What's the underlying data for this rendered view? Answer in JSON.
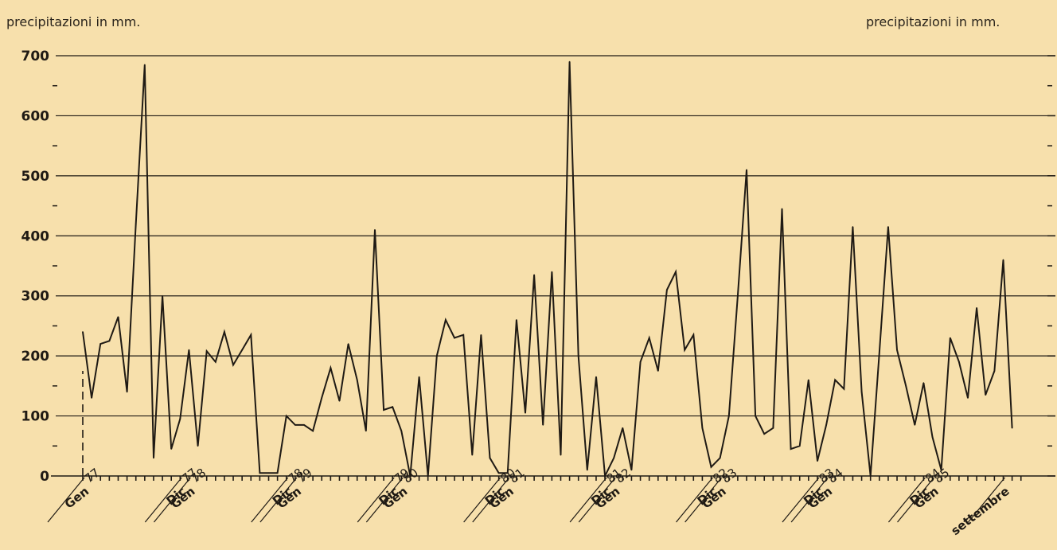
{
  "unit_label_left": "precipitazioni in mm.",
  "unit_label_right": "precipitazioni in mm.",
  "colors": {
    "background": "#f7e0ac",
    "line": "#1f1a14"
  },
  "chart_data": {
    "type": "line",
    "title": "",
    "xlabel": "",
    "ylabel": "precipitazioni in mm.",
    "ylim": [
      0,
      700
    ],
    "grid": true,
    "y_ticks": [
      "0",
      "100",
      "200",
      "300",
      "400",
      "500",
      "600",
      "700"
    ],
    "x_period": "Gen 1977 – settembre 1985 (monthly)",
    "x_labels": [
      {
        "word": "Gen",
        "year": "77",
        "month_index": 0
      },
      {
        "word": "Dic",
        "year": "77",
        "month_index": 11
      },
      {
        "word": "Gen",
        "year": "78",
        "month_index": 12
      },
      {
        "word": "Dic",
        "year": "78",
        "month_index": 23
      },
      {
        "word": "Gen",
        "year": "79",
        "month_index": 24
      },
      {
        "word": "Dic",
        "year": "79",
        "month_index": 35
      },
      {
        "word": "Gen",
        "year": "80",
        "month_index": 36
      },
      {
        "word": "Dic",
        "year": "80",
        "month_index": 47
      },
      {
        "word": "Gen",
        "year": "81",
        "month_index": 48
      },
      {
        "word": "Dic",
        "year": "81",
        "month_index": 59
      },
      {
        "word": "Gen",
        "year": "82",
        "month_index": 60
      },
      {
        "word": "Dic",
        "year": "82",
        "month_index": 71
      },
      {
        "word": "Gen",
        "year": "83",
        "month_index": 72
      },
      {
        "word": "Dic",
        "year": "83",
        "month_index": 83
      },
      {
        "word": "Gen",
        "year": "84",
        "month_index": 84
      },
      {
        "word": "Dic",
        "year": "84",
        "month_index": 95
      },
      {
        "word": "Gen",
        "year": "85",
        "month_index": 96
      },
      {
        "word": "settembre",
        "year": "",
        "month_index": 104
      }
    ],
    "series": [
      {
        "values": [
          240,
          130,
          220,
          225,
          265,
          140,
          420,
          685,
          30,
          300,
          45,
          95,
          210,
          50,
          208,
          190,
          240,
          185,
          210,
          235,
          5,
          5,
          5,
          100,
          85,
          85,
          75,
          130,
          180,
          125,
          220,
          160,
          75,
          410,
          110,
          115,
          75,
          0,
          165,
          0,
          200,
          260,
          230,
          235,
          35,
          235,
          30,
          5,
          5,
          260,
          105,
          335,
          85,
          340,
          35,
          690,
          200,
          10,
          165,
          0,
          30,
          80,
          10,
          190,
          230,
          175,
          310,
          340,
          210,
          235,
          80,
          15,
          30,
          100,
          300,
          510,
          100,
          70,
          80,
          445,
          45,
          50,
          160,
          25,
          85,
          160,
          145,
          415,
          140,
          0,
          205,
          415,
          210,
          150,
          85,
          155,
          65,
          10,
          230,
          190,
          130,
          280,
          135,
          175,
          360,
          80
        ]
      }
    ]
  }
}
